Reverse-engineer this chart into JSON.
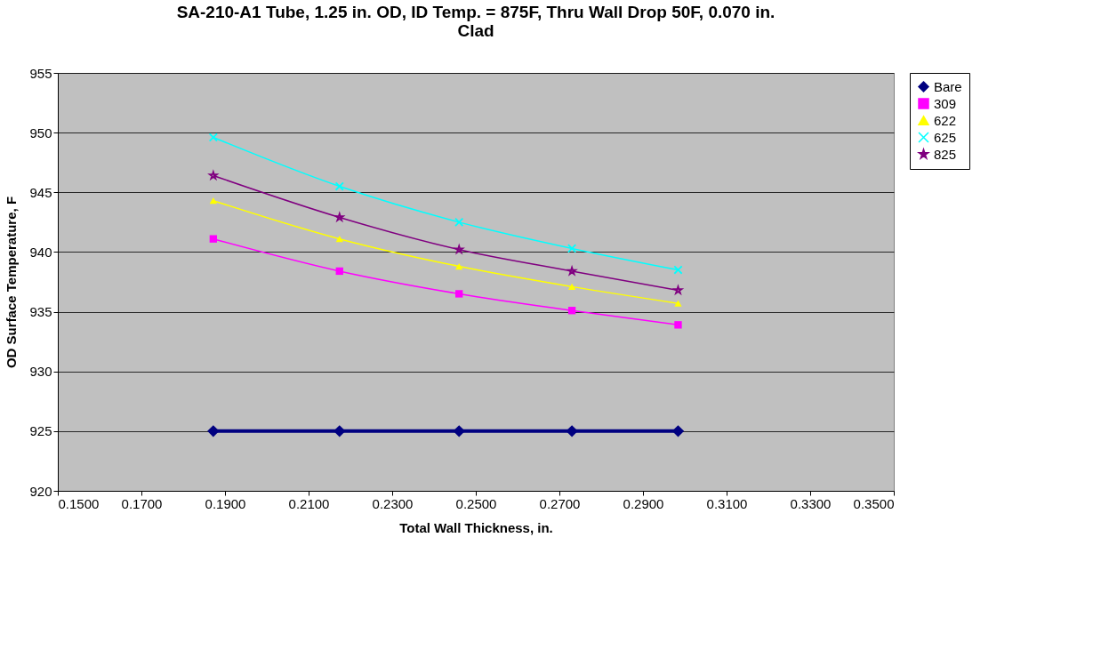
{
  "chart_data": {
    "type": "line",
    "title": [
      "SA-210-A1 Tube, 1.25 in. OD, ID Temp. = 875F, Thru Wall Drop 50F, 0.070 in.",
      "Clad"
    ],
    "xlabel": "Total Wall Thickness, in.",
    "ylabel": "OD Surface Temperature, F",
    "x": [
      0.1872,
      0.2174,
      0.246,
      0.273,
      0.2984
    ],
    "series": [
      {
        "name": "Bare",
        "color": "#000080",
        "marker": "diamond",
        "values": [
          925,
          925,
          925,
          925,
          925
        ]
      },
      {
        "name": "309",
        "color": "#ff00ff",
        "marker": "square",
        "values": [
          941.1,
          938.4,
          936.5,
          935.1,
          933.9
        ]
      },
      {
        "name": "622",
        "color": "#ffff00",
        "marker": "triangle",
        "values": [
          944.3,
          941.1,
          938.8,
          937.1,
          935.7
        ]
      },
      {
        "name": "625",
        "color": "#00ffff",
        "marker": "cross",
        "values": [
          949.6,
          945.5,
          942.5,
          940.3,
          938.5
        ]
      },
      {
        "name": "825",
        "color": "#800080",
        "marker": "star",
        "values": [
          946.4,
          942.9,
          940.2,
          938.4,
          936.8
        ]
      }
    ],
    "xlim": [
      0.15,
      0.35
    ],
    "xticks": [
      {
        "value": 0.15,
        "label": "0.1500"
      },
      {
        "value": 0.17,
        "label": "0.1700"
      },
      {
        "value": 0.19,
        "label": "0.1900"
      },
      {
        "value": 0.21,
        "label": "0.2100"
      },
      {
        "value": 0.23,
        "label": "0.2300"
      },
      {
        "value": 0.25,
        "label": "0.2500"
      },
      {
        "value": 0.27,
        "label": "0.2700"
      },
      {
        "value": 0.29,
        "label": "0.2900"
      },
      {
        "value": 0.31,
        "label": "0.3100"
      },
      {
        "value": 0.33,
        "label": "0.3300"
      },
      {
        "value": 0.35,
        "label": "0.3500"
      }
    ],
    "ylim": [
      920,
      955
    ],
    "yticks": [
      920,
      925,
      930,
      935,
      940,
      945,
      950,
      955
    ],
    "grid": "y",
    "legend": "right",
    "line_style": "solid"
  }
}
